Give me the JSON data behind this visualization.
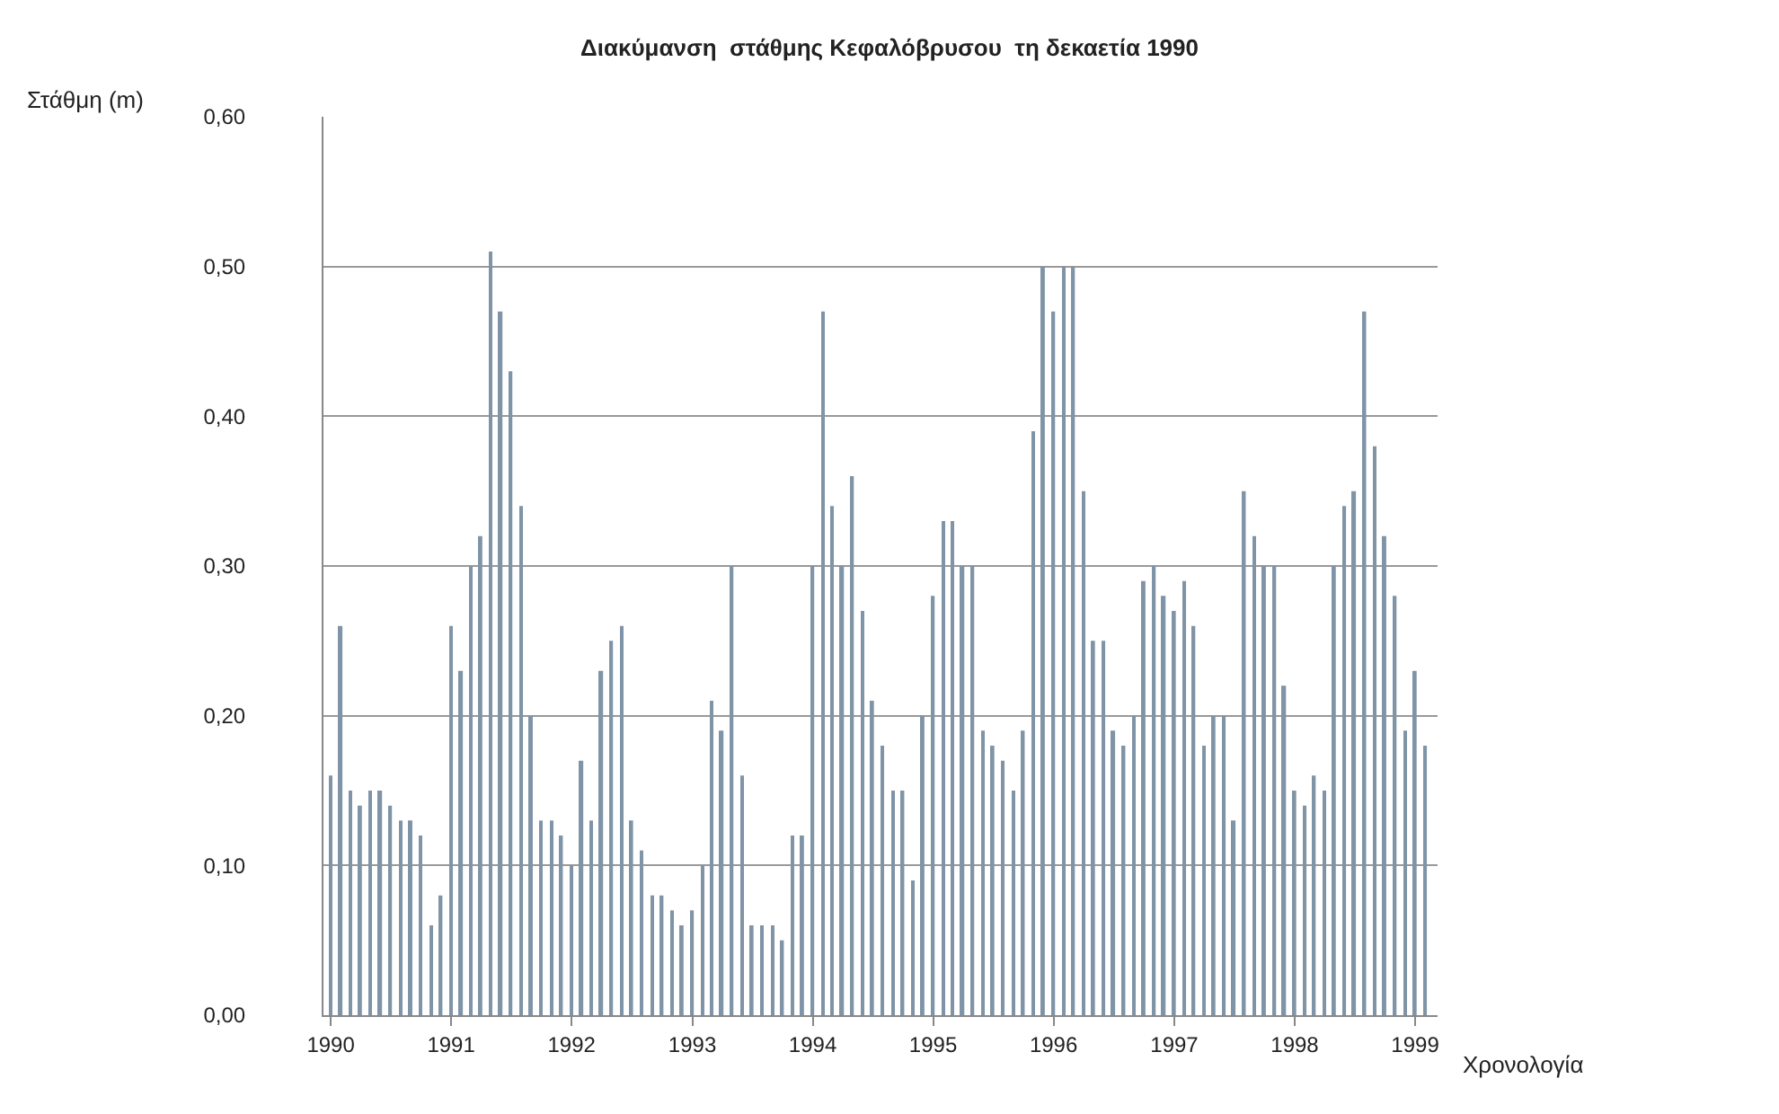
{
  "chart_data": {
    "type": "bar",
    "title": "Διακύμανση  στάθμης Κεφαλόβρυσου  τη δεκαετία 1990",
    "xlabel": "Χρονολογία",
    "ylabel": "Στάθμη (m)",
    "x": [
      "1990-01",
      "1990-02",
      "1990-03",
      "1990-04",
      "1990-05",
      "1990-06",
      "1990-07",
      "1990-08",
      "1990-09",
      "1990-10",
      "1990-11",
      "1990-12",
      "1991-01",
      "1991-02",
      "1991-03",
      "1991-04",
      "1991-05",
      "1991-06",
      "1991-07",
      "1991-08",
      "1991-09",
      "1991-10",
      "1991-11",
      "1991-12",
      "1992-01",
      "1992-02",
      "1992-03",
      "1992-04",
      "1992-05",
      "1992-06",
      "1992-07",
      "1992-08",
      "1992-09",
      "1992-10",
      "1992-11",
      "1992-12",
      "1993-01",
      "1993-02",
      "1993-03",
      "1993-04",
      "1993-05",
      "1993-06",
      "1993-07",
      "1993-08",
      "1993-09",
      "1993-10",
      "1993-11",
      "1993-12",
      "1994-01",
      "1994-02",
      "1994-03",
      "1994-04",
      "1994-05",
      "1994-06",
      "1994-07",
      "1994-08",
      "1994-09",
      "1994-10",
      "1994-11",
      "1994-12",
      "1995-01",
      "1995-02",
      "1995-03",
      "1995-04",
      "1995-05",
      "1995-06",
      "1995-07",
      "1995-08",
      "1995-09",
      "1995-10",
      "1995-11",
      "1995-12",
      "1996-01",
      "1996-02",
      "1996-03",
      "1996-04",
      "1996-05",
      "1996-06",
      "1996-07",
      "1996-08",
      "1996-09",
      "1996-10",
      "1996-11",
      "1996-12",
      "1997-01",
      "1997-02",
      "1997-03",
      "1997-04",
      "1997-05",
      "1997-06",
      "1997-07",
      "1997-08",
      "1997-09",
      "1997-10",
      "1997-11",
      "1997-12",
      "1998-01",
      "1998-02",
      "1998-03",
      "1998-04",
      "1998-05",
      "1998-06",
      "1998-07",
      "1998-08",
      "1998-09",
      "1998-10",
      "1998-11",
      "1998-12",
      "1999-01",
      "1999-02"
    ],
    "values": [
      0.16,
      0.26,
      0.15,
      0.14,
      0.15,
      0.15,
      0.14,
      0.13,
      0.13,
      0.12,
      0.06,
      0.08,
      0.26,
      0.23,
      0.3,
      0.32,
      0.51,
      0.47,
      0.43,
      0.34,
      0.2,
      0.13,
      0.13,
      0.12,
      0.1,
      0.17,
      0.13,
      0.23,
      0.25,
      0.26,
      0.13,
      0.11,
      0.08,
      0.08,
      0.07,
      0.06,
      0.07,
      0.1,
      0.21,
      0.19,
      0.3,
      0.16,
      0.06,
      0.06,
      0.06,
      0.05,
      0.12,
      0.12,
      0.3,
      0.47,
      0.34,
      0.3,
      0.36,
      0.27,
      0.21,
      0.18,
      0.15,
      0.15,
      0.09,
      0.2,
      0.28,
      0.33,
      0.33,
      0.3,
      0.3,
      0.19,
      0.18,
      0.17,
      0.15,
      0.19,
      0.39,
      0.5,
      0.47,
      0.5,
      0.5,
      0.35,
      0.25,
      0.25,
      0.19,
      0.18,
      0.2,
      0.29,
      0.3,
      0.28,
      0.27,
      0.29,
      0.26,
      0.18,
      0.2,
      0.2,
      0.13,
      0.35,
      0.32,
      0.3,
      0.3,
      0.22,
      0.15,
      0.14,
      0.16,
      0.15,
      0.3,
      0.34,
      0.35,
      0.47,
      0.38,
      0.32,
      0.28,
      0.19,
      0.23,
      0.18
    ],
    "color": "#7f94a6",
    "ylim": [
      0,
      0.6
    ],
    "yticks": [
      {
        "value": 0,
        "label": "0,00"
      },
      {
        "value": 0.1,
        "label": "0,10"
      },
      {
        "value": 0.2,
        "label": "0,20"
      },
      {
        "value": 0.3,
        "label": "0,30"
      },
      {
        "value": 0.4,
        "label": "0,40"
      },
      {
        "value": 0.5,
        "label": "0,50"
      },
      {
        "value": 0.6,
        "label": "0,60"
      }
    ],
    "xlim": [
      "1989-12-10",
      "1999-03-10"
    ],
    "xticks": [
      "1990",
      "1991",
      "1992",
      "1993",
      "1994",
      "1995",
      "1996",
      "1997",
      "1998",
      "1999"
    ],
    "grid": "y"
  }
}
